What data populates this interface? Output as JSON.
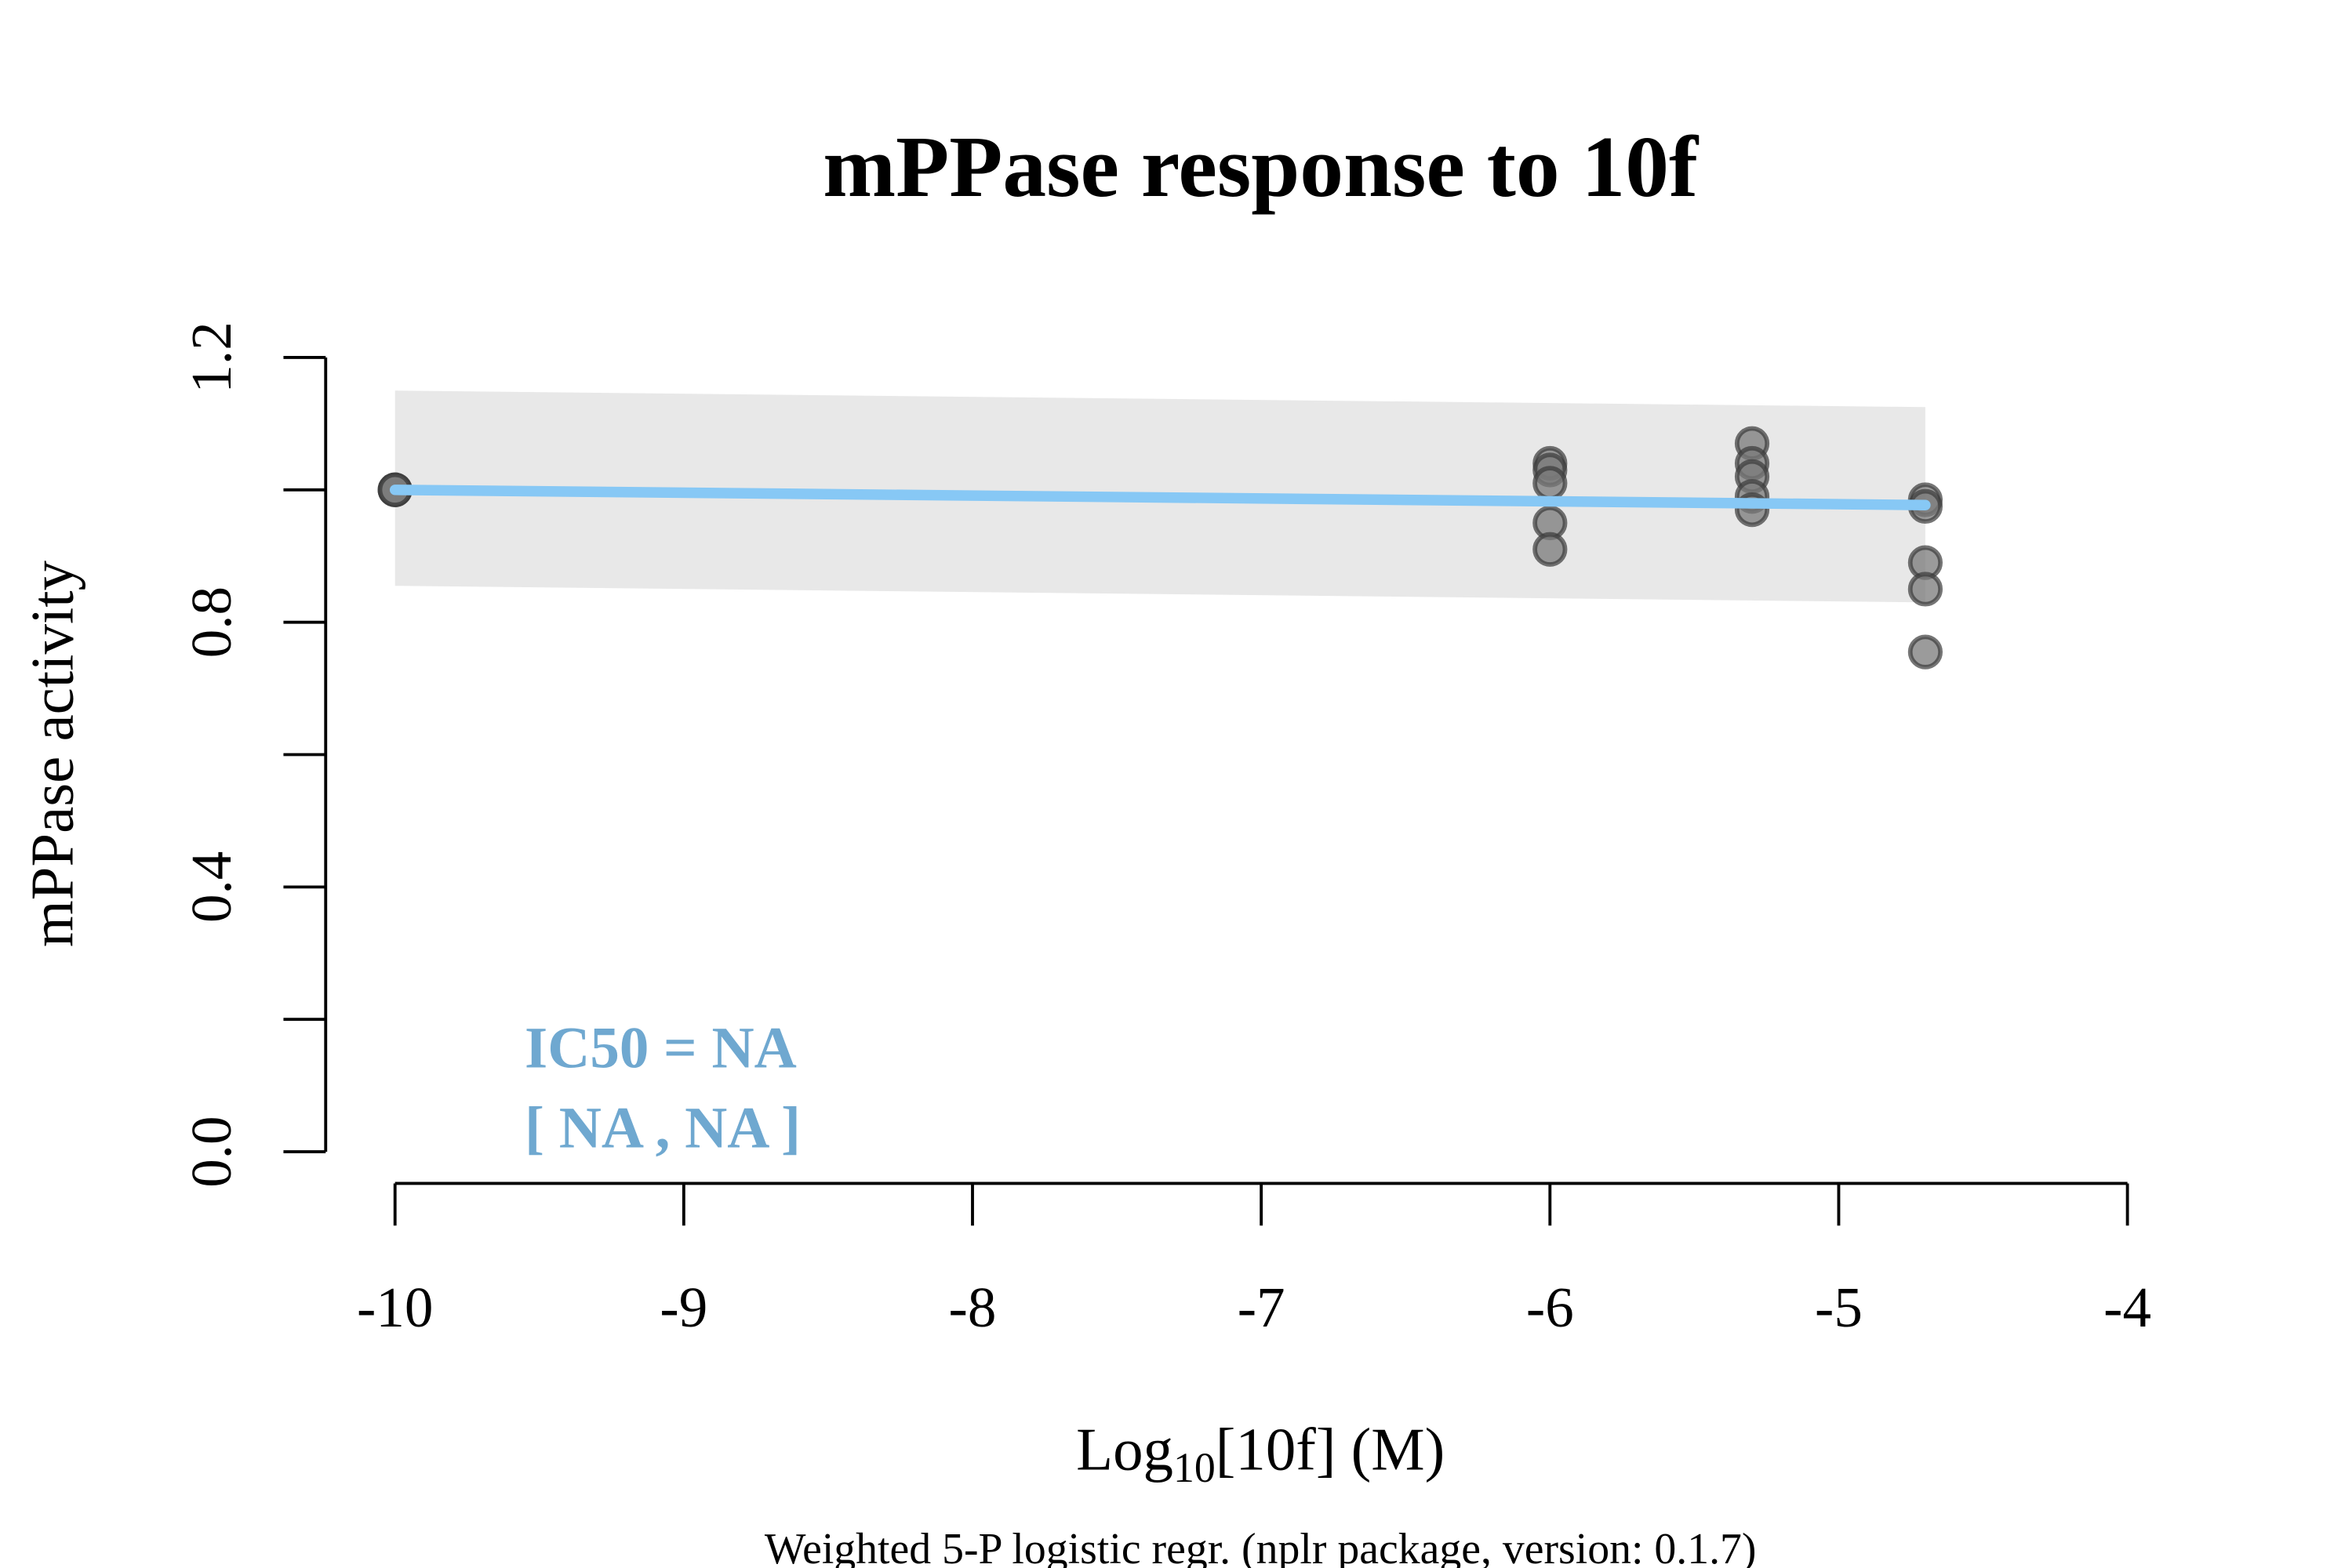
{
  "chart_data": {
    "type": "scatter",
    "title": "mPPase response to 10f",
    "ylabel": "mPPase activity",
    "xlabel_prefix": "Log",
    "xlabel_sub": "10",
    "xlabel_suffix": "[10f] (M)",
    "footnote": "Weighted 5-P logistic regr. (nplr package, version: 0.1.7)",
    "xlim": [
      -10,
      -4
    ],
    "ylim": [
      0,
      1.2
    ],
    "x_ticks": [
      -10,
      -9,
      -8,
      -7,
      -6,
      -5,
      -4
    ],
    "x_tick_labels": [
      "-10",
      "-9",
      "-8",
      "-7",
      "-6",
      "-5",
      "-4"
    ],
    "y_ticks": [
      0,
      0.2,
      0.4,
      0.6,
      0.8,
      1.0,
      1.2
    ],
    "y_tick_labels": [
      "0.0",
      "",
      "0.4",
      "",
      "0.8",
      "",
      "1.2"
    ],
    "grid": false,
    "annotation": {
      "line1": "IC50 = NA",
      "line2": "[ NA , NA ]",
      "color": "#6fa8d0"
    },
    "colors": {
      "fit_line": "#87c8f5",
      "confidence_band": "#e8e8e8",
      "point_fill": "#7a7a7a",
      "point_stroke": "#3a3a3a"
    },
    "fit": {
      "x": [
        -10,
        -4.7
      ],
      "y": [
        1.0,
        0.977
      ]
    },
    "band": {
      "x": [
        -10,
        -4.7
      ],
      "upper": [
        1.15,
        1.125
      ],
      "lower": [
        0.855,
        0.83
      ]
    },
    "points": [
      {
        "x": -10,
        "y": 1.0
      },
      {
        "x": -10,
        "y": 1.0
      },
      {
        "x": -10,
        "y": 1.0
      },
      {
        "x": -6,
        "y": 1.04
      },
      {
        "x": -6,
        "y": 1.03
      },
      {
        "x": -6,
        "y": 1.01
      },
      {
        "x": -6,
        "y": 0.95
      },
      {
        "x": -6,
        "y": 0.91
      },
      {
        "x": -5.3,
        "y": 1.07
      },
      {
        "x": -5.3,
        "y": 1.04
      },
      {
        "x": -5.3,
        "y": 1.02
      },
      {
        "x": -5.3,
        "y": 0.99
      },
      {
        "x": -5.3,
        "y": 0.97
      },
      {
        "x": -4.7,
        "y": 0.985
      },
      {
        "x": -4.7,
        "y": 0.975
      },
      {
        "x": -4.7,
        "y": 0.89
      },
      {
        "x": -4.7,
        "y": 0.85
      },
      {
        "x": -4.7,
        "y": 0.755
      }
    ]
  }
}
